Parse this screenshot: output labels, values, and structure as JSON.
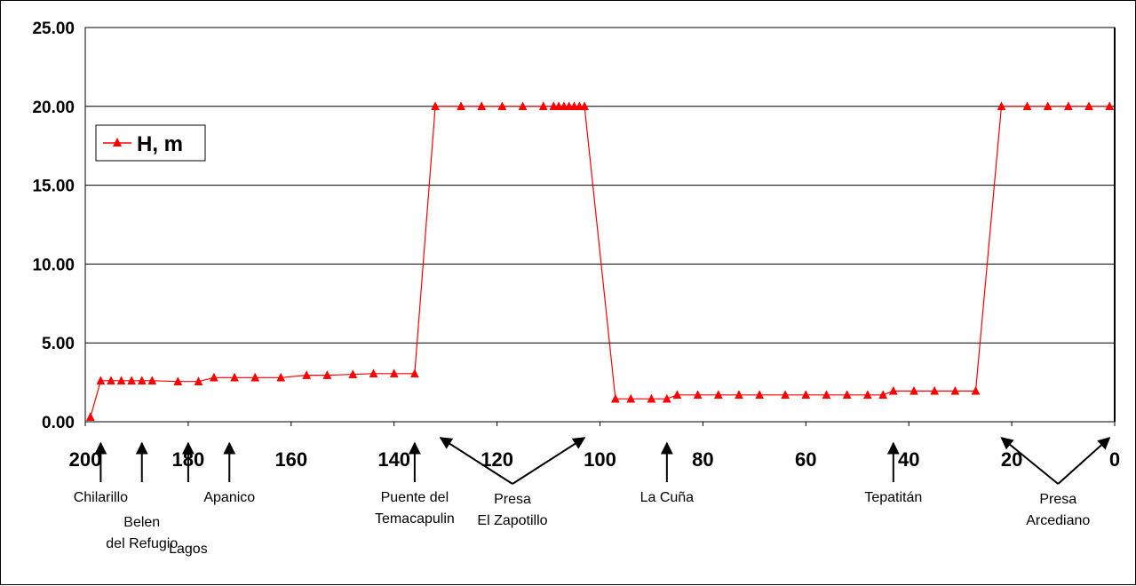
{
  "chart_data": {
    "type": "line",
    "title": "",
    "xlabel": "",
    "ylabel": "",
    "xlim": [
      200,
      0
    ],
    "x_reversed": true,
    "ylim": [
      0,
      25
    ],
    "grid": "horizontal",
    "legend_placement": "top-left",
    "x_ticks": [
      "200",
      "180",
      "160",
      "140",
      "120",
      "100",
      "80",
      "60",
      "40",
      "20",
      "0"
    ],
    "y_ticks": [
      "0.00",
      "5.00",
      "10.00",
      "15.00",
      "20.00",
      "25.00"
    ],
    "series": [
      {
        "name": "H, m",
        "color": "#ff0000",
        "marker": "triangle",
        "points": [
          [
            199,
            0.3
          ],
          [
            197,
            2.6
          ],
          [
            195,
            2.6
          ],
          [
            193,
            2.6
          ],
          [
            191,
            2.6
          ],
          [
            189,
            2.6
          ],
          [
            187,
            2.6
          ],
          [
            182,
            2.55
          ],
          [
            178,
            2.55
          ],
          [
            175,
            2.8
          ],
          [
            171,
            2.8
          ],
          [
            167,
            2.8
          ],
          [
            162,
            2.8
          ],
          [
            157,
            2.95
          ],
          [
            153,
            2.95
          ],
          [
            148,
            3.0
          ],
          [
            144,
            3.05
          ],
          [
            140,
            3.05
          ],
          [
            136,
            3.05
          ],
          [
            132,
            20
          ],
          [
            127,
            20
          ],
          [
            123,
            20
          ],
          [
            119,
            20
          ],
          [
            115,
            20
          ],
          [
            111,
            20
          ],
          [
            109,
            20
          ],
          [
            108,
            20
          ],
          [
            107,
            20
          ],
          [
            106,
            20
          ],
          [
            105,
            20
          ],
          [
            104,
            20
          ],
          [
            103,
            20
          ],
          [
            97,
            1.45
          ],
          [
            94,
            1.45
          ],
          [
            90,
            1.45
          ],
          [
            87,
            1.45
          ],
          [
            85,
            1.7
          ],
          [
            81,
            1.7
          ],
          [
            77,
            1.7
          ],
          [
            73,
            1.7
          ],
          [
            69,
            1.7
          ],
          [
            64,
            1.7
          ],
          [
            60,
            1.7
          ],
          [
            56,
            1.7
          ],
          [
            52,
            1.7
          ],
          [
            48,
            1.7
          ],
          [
            45,
            1.7
          ],
          [
            43,
            1.95
          ],
          [
            39,
            1.95
          ],
          [
            35,
            1.95
          ],
          [
            31,
            1.95
          ],
          [
            27,
            1.95
          ],
          [
            22,
            20
          ],
          [
            17,
            20
          ],
          [
            13,
            20
          ],
          [
            9,
            20
          ],
          [
            5,
            20
          ],
          [
            1,
            20
          ]
        ]
      }
    ],
    "annotations": [
      {
        "lines": [
          "Chilarillo"
        ],
        "x": 197,
        "arrow": "vertical"
      },
      {
        "lines": [
          "Belen",
          "del Refugio"
        ],
        "x": 189,
        "arrow": "vertical"
      },
      {
        "lines": [
          "Lagos"
        ],
        "x": 180,
        "arrow": "vertical"
      },
      {
        "lines": [
          "Apanico"
        ],
        "x": 172,
        "arrow": "vertical"
      },
      {
        "lines": [
          "Puente del",
          "Temacapulin"
        ],
        "x": 136,
        "arrow": "vertical"
      },
      {
        "lines": [
          "Presa",
          "El Zapotillo"
        ],
        "x": 117,
        "arrow": "v-to",
        "targets": [
          131,
          103
        ]
      },
      {
        "lines": [
          "La  Cuña"
        ],
        "x": 87,
        "arrow": "vertical"
      },
      {
        "lines": [
          "Tepatitán"
        ],
        "x": 43,
        "arrow": "vertical"
      },
      {
        "lines": [
          "Presa",
          "Arcediano"
        ],
        "x": 11,
        "arrow": "v-to",
        "targets": [
          22,
          1
        ]
      }
    ]
  }
}
